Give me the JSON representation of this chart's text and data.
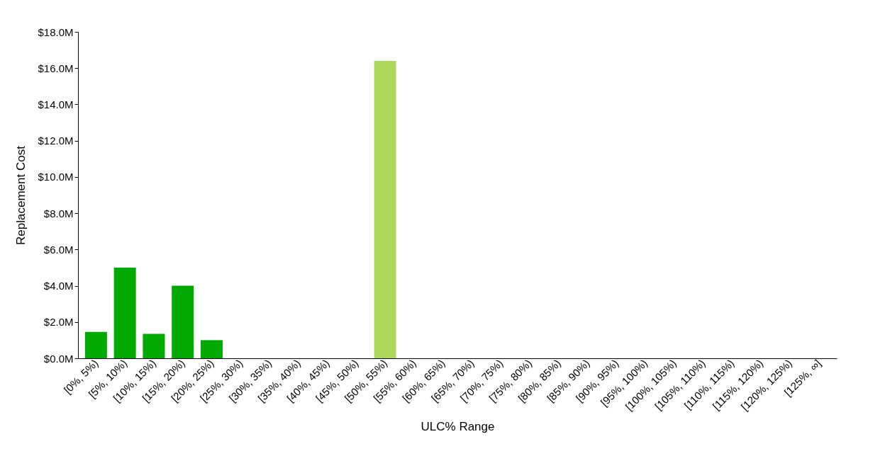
{
  "chart_data": {
    "type": "bar",
    "xlabel": "ULC% Range",
    "ylabel": "Replacement Cost",
    "categories": [
      "[0%, 5%)",
      "[5%, 10%)",
      "[10%, 15%)",
      "[15%, 20%)",
      "[20%, 25%)",
      "[25%, 30%)",
      "[30%, 35%)",
      "[35%, 40%)",
      "[40%, 45%)",
      "[45%, 50%)",
      "[50%, 55%)",
      "[55%, 60%)",
      "[60%, 65%)",
      "[65%, 70%)",
      "[70%, 75%)",
      "[75%, 80%)",
      "[80%, 85%)",
      "[85%, 90%)",
      "[90%, 95%)",
      "[95%, 100%)",
      "[100%, 105%)",
      "[105%, 110%)",
      "[110%, 115%)",
      "[115%, 120%)",
      "[120%, 125%)",
      "[125%, ∞]"
    ],
    "values": [
      1.45,
      5.0,
      1.35,
      4.0,
      1.0,
      0,
      0,
      0,
      0,
      0,
      16.4,
      0,
      0,
      0,
      0,
      0,
      0,
      0,
      0,
      0,
      0,
      0,
      0,
      0,
      0,
      0
    ],
    "colors": [
      "#00aa00",
      "#00aa00",
      "#00aa00",
      "#00aa00",
      "#00aa00",
      "#00aa00",
      "#00aa00",
      "#00aa00",
      "#00aa00",
      "#00aa00",
      "#add95a",
      "#00aa00",
      "#00aa00",
      "#00aa00",
      "#00aa00",
      "#00aa00",
      "#00aa00",
      "#00aa00",
      "#00aa00",
      "#00aa00",
      "#00aa00",
      "#00aa00",
      "#00aa00",
      "#00aa00",
      "#00aa00",
      "#00aa00"
    ],
    "ylim": [
      0,
      18
    ],
    "yticks": [
      {
        "value": 0,
        "label": "$0.0M"
      },
      {
        "value": 2,
        "label": "$2.0M"
      },
      {
        "value": 4,
        "label": "$4.0M"
      },
      {
        "value": 6,
        "label": "$6.0M"
      },
      {
        "value": 8,
        "label": "$8.0M"
      },
      {
        "value": 10,
        "label": "$10.0M"
      },
      {
        "value": 12,
        "label": "$12.0M"
      },
      {
        "value": 14,
        "label": "$14.0M"
      },
      {
        "value": 16,
        "label": "$16.0M"
      },
      {
        "value": 18,
        "label": "$18.0M"
      }
    ],
    "grid": false
  }
}
